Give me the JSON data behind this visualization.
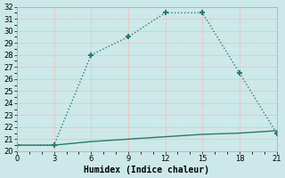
{
  "line1_x": [
    0,
    3,
    6,
    9,
    12,
    15,
    18,
    21
  ],
  "line1_y": [
    20.5,
    20.5,
    28.0,
    29.5,
    31.5,
    31.5,
    26.5,
    21.5
  ],
  "line2_x": [
    0,
    3,
    6,
    9,
    12,
    15,
    18,
    21
  ],
  "line2_y": [
    20.5,
    20.5,
    20.8,
    21.0,
    21.2,
    21.4,
    21.5,
    21.7
  ],
  "line_color": "#2a7a6a",
  "marker": "+",
  "xlabel": "Humidex (Indice chaleur)",
  "xlim": [
    0,
    21
  ],
  "ylim": [
    20,
    32
  ],
  "xticks": [
    0,
    3,
    6,
    9,
    12,
    15,
    18,
    21
  ],
  "yticks": [
    20,
    21,
    22,
    23,
    24,
    25,
    26,
    27,
    28,
    29,
    30,
    31,
    32
  ],
  "bg_color": "#cce8e8",
  "grid_major_color": "#e8c8c8",
  "grid_minor_color": "#ddeaea"
}
